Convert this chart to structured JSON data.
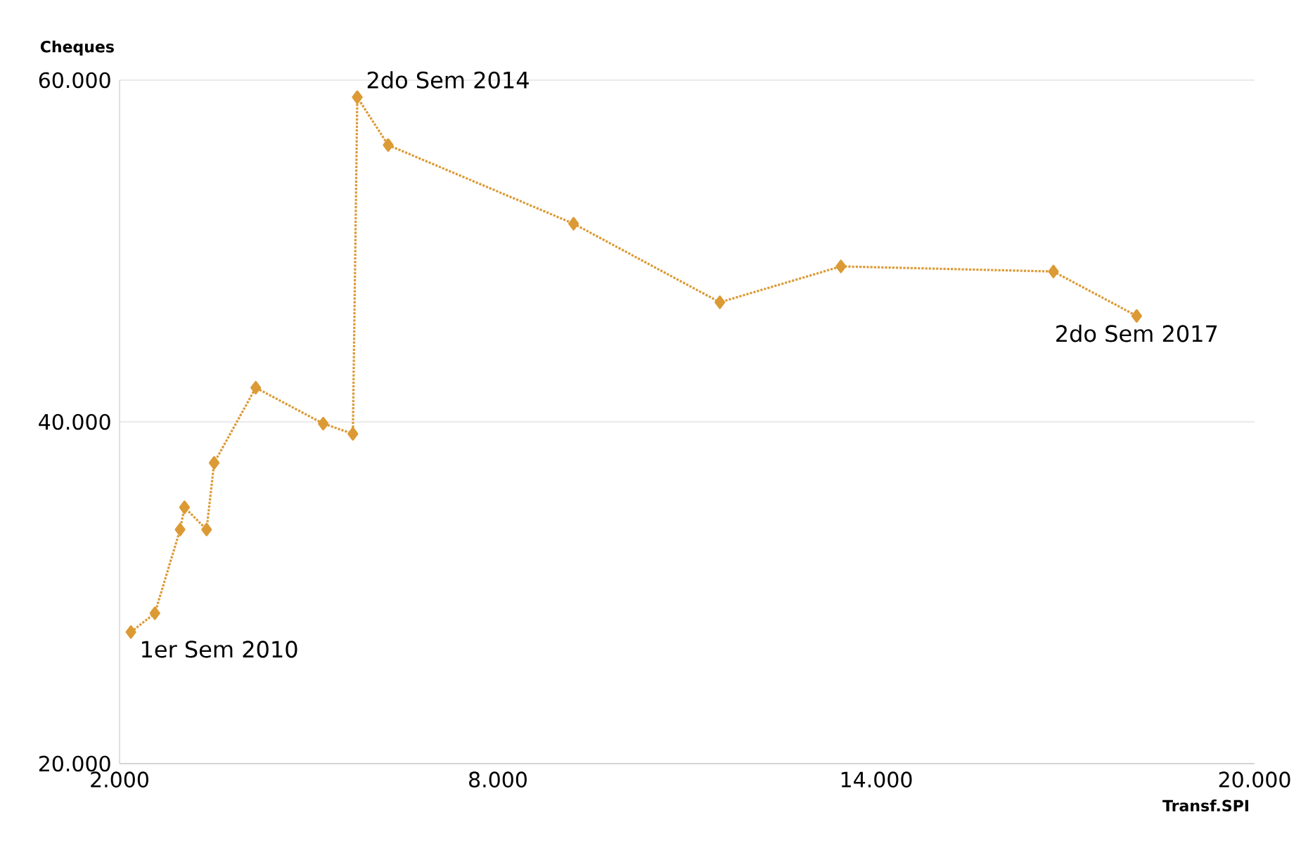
{
  "chart_data": {
    "type": "line",
    "xlabel": "Transf.SPI",
    "ylabel": "Cheques",
    "x": [
      2180,
      2560,
      2960,
      3030,
      3380,
      3500,
      4160,
      5230,
      5700,
      5770,
      6260,
      9200,
      11520,
      13440,
      16810,
      18130
    ],
    "values": [
      27700,
      28800,
      33700,
      35000,
      33700,
      37600,
      42000,
      39900,
      39300,
      59000,
      56200,
      51600,
      47000,
      49100,
      48800,
      46200
    ],
    "color": "#dc9a35",
    "marker": "diamond",
    "line_style": "dotted",
    "grid": "y",
    "xlim": [
      2000,
      20000
    ],
    "ylim": [
      20000,
      60000
    ],
    "xticks": [
      {
        "value": 2000,
        "label": "2.000"
      },
      {
        "value": 8000,
        "label": "8.000"
      },
      {
        "value": 14000,
        "label": "14.000"
      },
      {
        "value": 20000,
        "label": "20.000"
      }
    ],
    "yticks": [
      {
        "value": 20000,
        "label": "20.000"
      },
      {
        "value": 40000,
        "label": "40.000"
      },
      {
        "value": 60000,
        "label": "60.000"
      }
    ],
    "annotations": [
      {
        "text": "1er Sem 2010",
        "x": 2180,
        "y": 27700
      },
      {
        "text": "2do Sem 2014",
        "x": 5770,
        "y": 59000
      },
      {
        "text": "2do Sem 2017",
        "x": 18130,
        "y": 46200
      }
    ]
  }
}
